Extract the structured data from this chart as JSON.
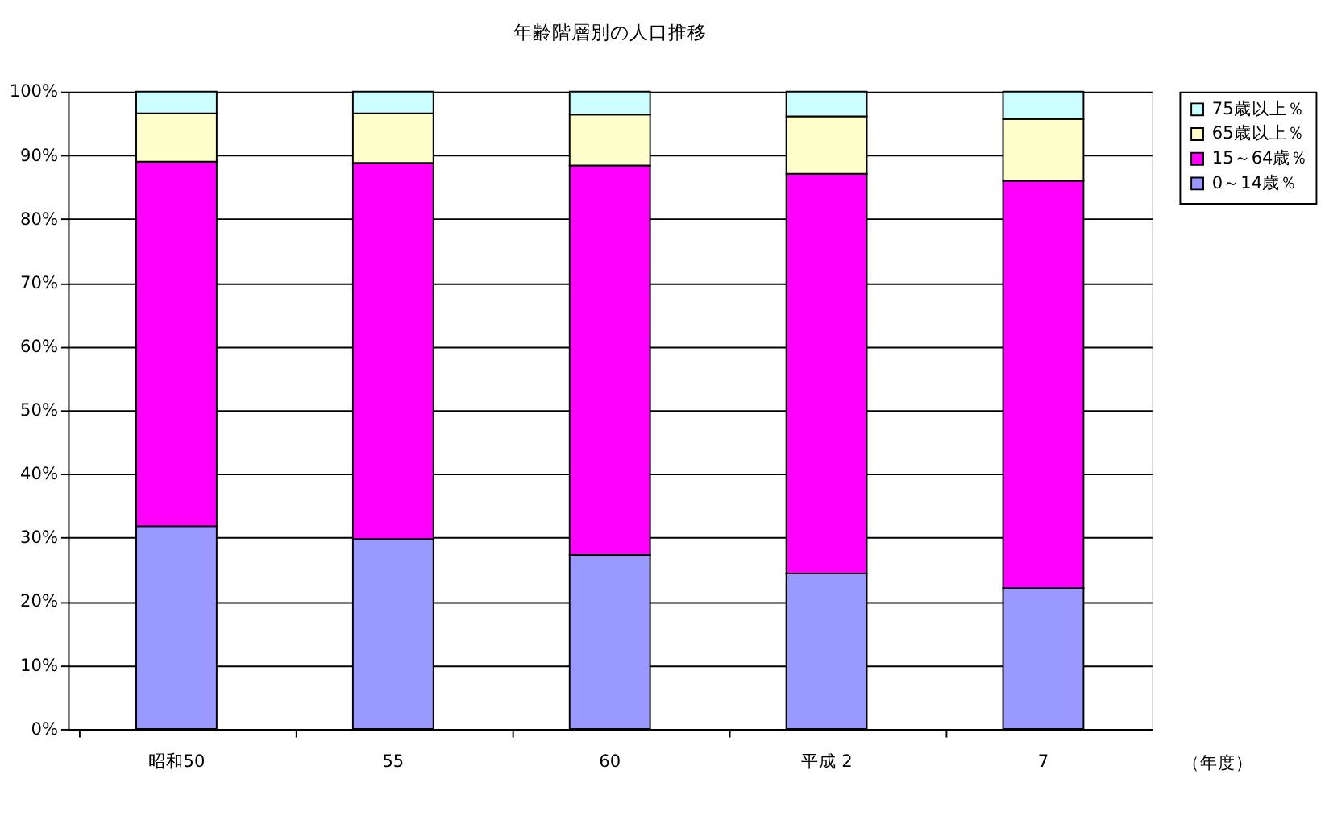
{
  "chart_data": {
    "type": "bar",
    "stacked": true,
    "title": "年齢階層別の人口推移",
    "xlabel": "（年度）",
    "categories": [
      "昭和50",
      "55",
      "60",
      "平成 2",
      "7"
    ],
    "series": [
      {
        "name": "0～14歳％",
        "color": "#9999ff",
        "values": [
          31.8,
          29.8,
          27.3,
          24.4,
          22.1
        ]
      },
      {
        "name": "15～64歳％",
        "color": "#ff00ff",
        "values": [
          57.2,
          59.0,
          61.1,
          62.7,
          63.9
        ]
      },
      {
        "name": "65歳以上％",
        "color": "#ffffcc",
        "values": [
          7.6,
          7.8,
          8.0,
          9.0,
          9.7
        ]
      },
      {
        "name": "75歳以上％",
        "color": "#ccffff",
        "values": [
          3.4,
          3.4,
          3.6,
          3.9,
          4.3
        ]
      }
    ],
    "ylim": [
      0,
      100
    ],
    "yticks": [
      {
        "value": 0,
        "label": "0%"
      },
      {
        "value": 10,
        "label": "10%"
      },
      {
        "value": 20,
        "label": "20%"
      },
      {
        "value": 30,
        "label": "30%"
      },
      {
        "value": 40,
        "label": "40%"
      },
      {
        "value": 50,
        "label": "50%"
      },
      {
        "value": 60,
        "label": "60%"
      },
      {
        "value": 70,
        "label": "70%"
      },
      {
        "value": 80,
        "label": "80%"
      },
      {
        "value": 90,
        "label": "90%"
      },
      {
        "value": 100,
        "label": "100%"
      }
    ],
    "grid": "y",
    "legend": "right"
  }
}
